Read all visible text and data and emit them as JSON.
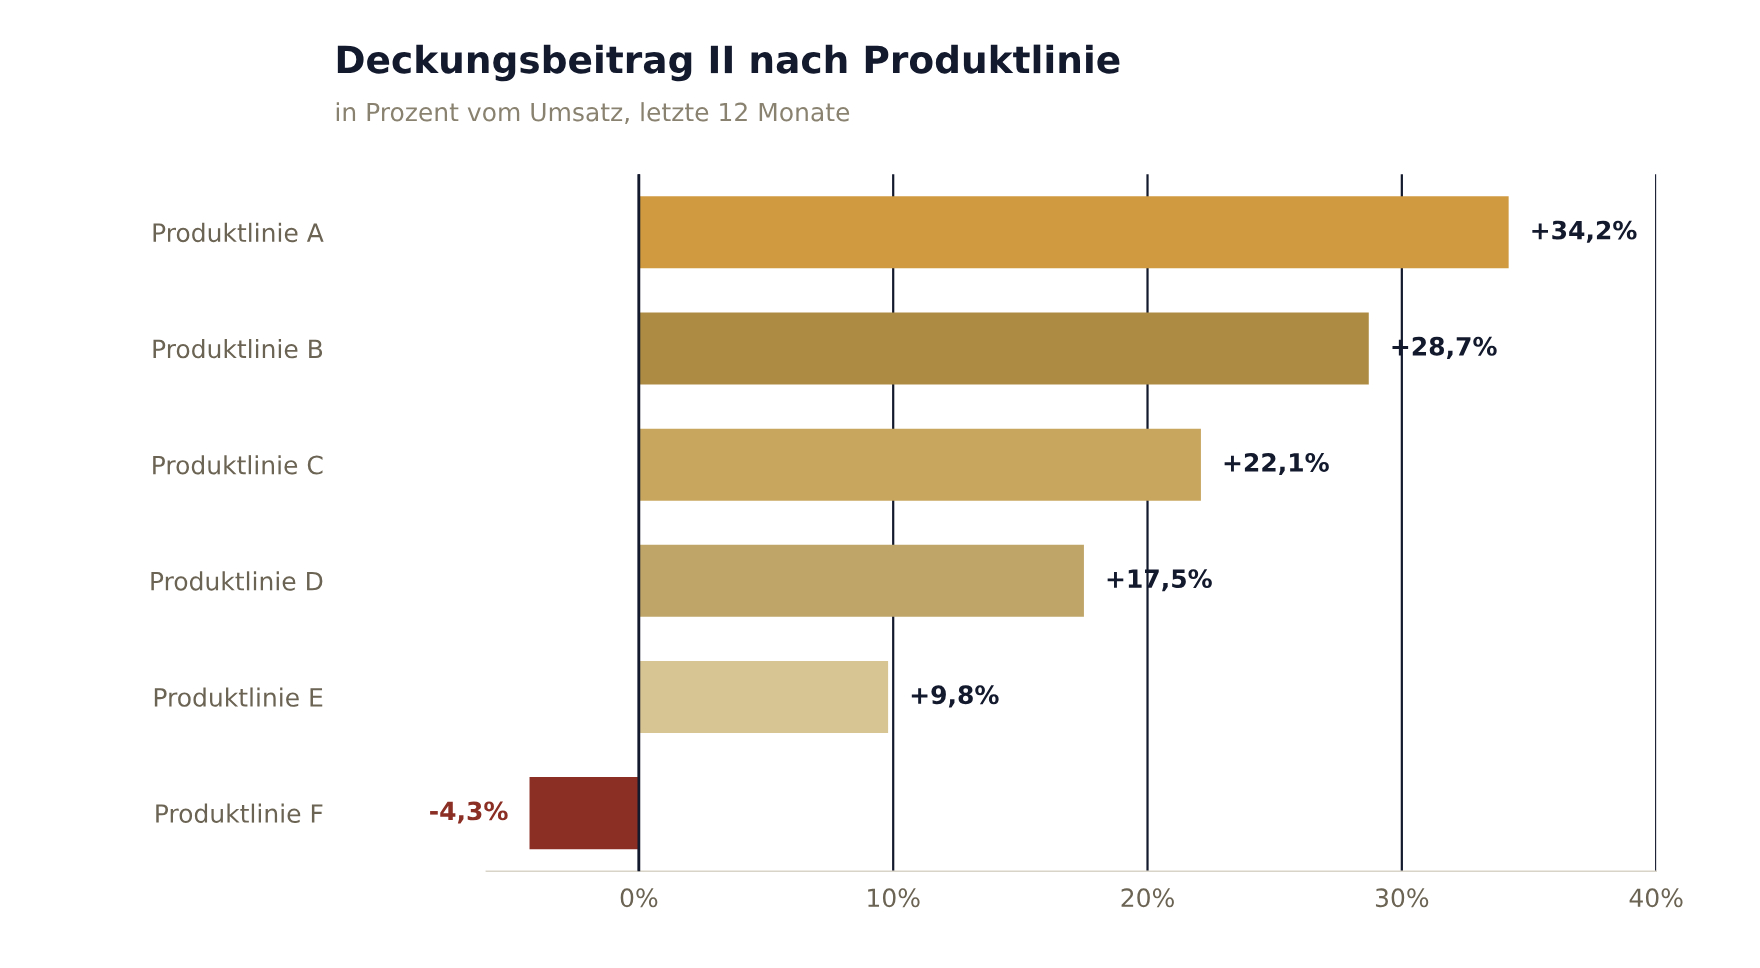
{
  "chart_data": {
    "type": "bar",
    "orientation": "horizontal",
    "title": "Deckungsbeitrag II nach Produktlinie",
    "subtitle": "in Prozent vom Umsatz, letzte 12 Monate",
    "categories": [
      "Produktlinie A",
      "Produktlinie B",
      "Produktlinie C",
      "Produktlinie D",
      "Produktlinie E",
      "Produktlinie F"
    ],
    "values": [
      34.2,
      28.7,
      22.1,
      17.5,
      9.8,
      -4.3
    ],
    "colors": [
      "#d09a40",
      "#ae8b42",
      "#c8a65e",
      "#bfa668",
      "#d8c594",
      "#8b2e24"
    ],
    "value_labels": [
      "+34,2%",
      "+28,7%",
      "+22,1%",
      "+17,5%",
      "+9,8%",
      "-4,3%"
    ],
    "xticks": [
      {
        "value": 0,
        "label": "0%"
      },
      {
        "value": 10,
        "label": "10%"
      },
      {
        "value": 20,
        "label": "20%"
      },
      {
        "value": 30,
        "label": "30%"
      },
      {
        "value": 40,
        "label": "40%"
      }
    ],
    "xlim": [
      -6,
      40
    ],
    "grid": "x",
    "legend": false
  }
}
